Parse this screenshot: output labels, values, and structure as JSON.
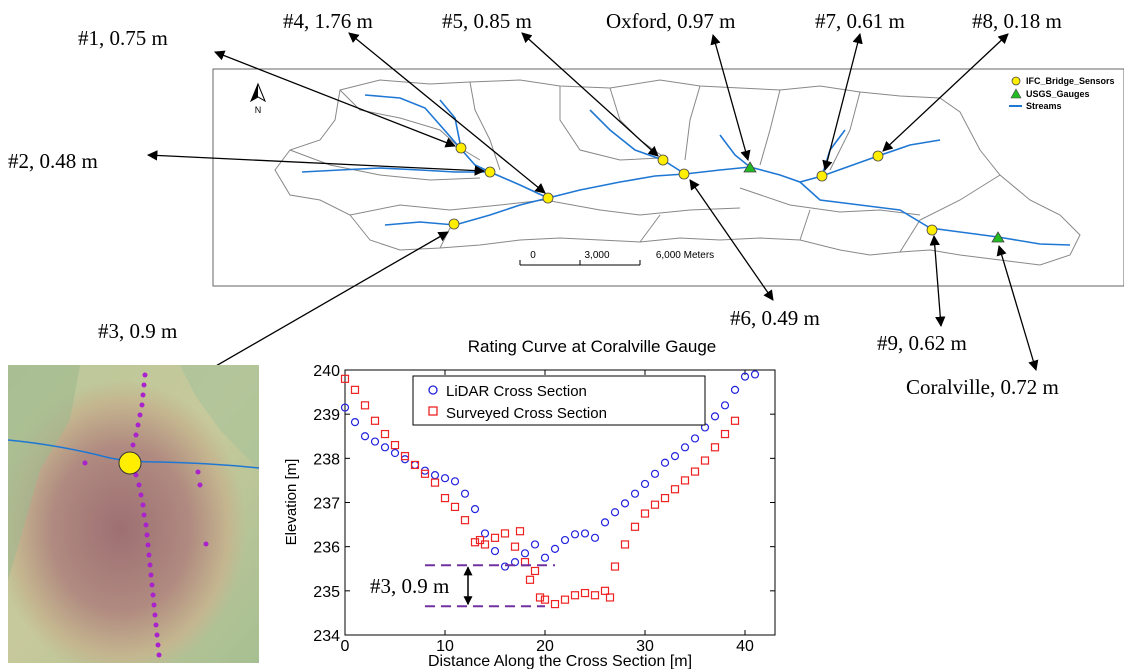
{
  "map": {
    "legend": {
      "bridge_sensors": "IFC_Bridge_Sensors",
      "usgs_gauges": "USGS_Gauges",
      "streams": "Streams"
    },
    "north_label": "N",
    "scalebar": {
      "t0": "0",
      "t1": "3,000",
      "t2": "6,000 Meters"
    },
    "callouts": [
      {
        "id": "s1",
        "label": "#1, 0.75 m"
      },
      {
        "id": "s2",
        "label": "#2, 0.48 m"
      },
      {
        "id": "s3",
        "label": "#3, 0.9 m"
      },
      {
        "id": "s4",
        "label": "#4, 1.76 m"
      },
      {
        "id": "s5",
        "label": "#5, 0.85 m"
      },
      {
        "id": "oxford",
        "label": "Oxford, 0.97 m"
      },
      {
        "id": "s6",
        "label": "#6, 0.49 m"
      },
      {
        "id": "s7",
        "label": "#7, 0.61 m"
      },
      {
        "id": "s8",
        "label": "#8, 0.18 m"
      },
      {
        "id": "s9",
        "label": "#9, 0.62 m"
      },
      {
        "id": "coralville",
        "label": "Coralville, 0.72 m"
      }
    ],
    "colors": {
      "sensor": "#ffee00",
      "gauge": "#22bb22",
      "stream": "#1f77d4"
    }
  },
  "chart_data": {
    "type": "scatter",
    "title": "Rating Curve at Coralville Gauge",
    "xlabel": "Distance Along the Cross Section [m]",
    "ylabel": "Elevation [m]",
    "xlim": [
      0,
      43
    ],
    "ylim": [
      234,
      240
    ],
    "xticks": [
      0,
      10,
      20,
      30,
      40
    ],
    "yticks": [
      234,
      235,
      236,
      237,
      238,
      239,
      240
    ],
    "legend_position": "top-left",
    "annotation": "#3, 0.9 m",
    "series": [
      {
        "name": "LiDAR Cross Section",
        "marker": "circle",
        "color": "#2222dd",
        "x": [
          0,
          1,
          2,
          3,
          4,
          5,
          6,
          7,
          8,
          9,
          10,
          11,
          12,
          13,
          14,
          15,
          16,
          17,
          18,
          19,
          20,
          21,
          22,
          23,
          24,
          25,
          26,
          27,
          28,
          29,
          30,
          31,
          32,
          33,
          34,
          35,
          36,
          37,
          38,
          39,
          40,
          41
        ],
        "y": [
          239.15,
          238.82,
          238.5,
          238.38,
          238.25,
          238.12,
          237.98,
          237.85,
          237.72,
          237.62,
          237.55,
          237.48,
          237.2,
          236.85,
          236.3,
          235.9,
          235.55,
          235.65,
          235.85,
          236.05,
          235.75,
          235.95,
          236.15,
          236.28,
          236.3,
          236.2,
          236.55,
          236.78,
          236.98,
          237.2,
          237.42,
          237.65,
          237.9,
          238.05,
          238.25,
          238.45,
          238.7,
          238.95,
          239.2,
          239.55,
          239.85,
          239.9
        ]
      },
      {
        "name": "Surveyed Cross Section",
        "marker": "square",
        "color": "#ee2222",
        "x": [
          0,
          1,
          2,
          3,
          4,
          5,
          6,
          7,
          8,
          9,
          10,
          11,
          12,
          13,
          13.5,
          14,
          15,
          16,
          17,
          17.5,
          18,
          18.5,
          19,
          19.5,
          20,
          21,
          22,
          23,
          24,
          25,
          26,
          26.5,
          27,
          28,
          29,
          30,
          31,
          32,
          33,
          34,
          35,
          36,
          37,
          38,
          39
        ],
        "y": [
          239.8,
          239.55,
          239.2,
          238.85,
          238.55,
          238.3,
          238.05,
          237.85,
          237.65,
          237.45,
          237.1,
          236.9,
          236.6,
          236.1,
          236.15,
          236.05,
          236.2,
          236.3,
          236.0,
          236.35,
          235.65,
          235.25,
          235.45,
          234.85,
          234.8,
          234.7,
          234.8,
          234.9,
          234.95,
          234.9,
          235.0,
          234.85,
          235.55,
          236.05,
          236.45,
          236.75,
          236.95,
          237.1,
          237.3,
          237.5,
          237.7,
          237.95,
          238.25,
          238.55,
          238.85
        ]
      }
    ]
  }
}
